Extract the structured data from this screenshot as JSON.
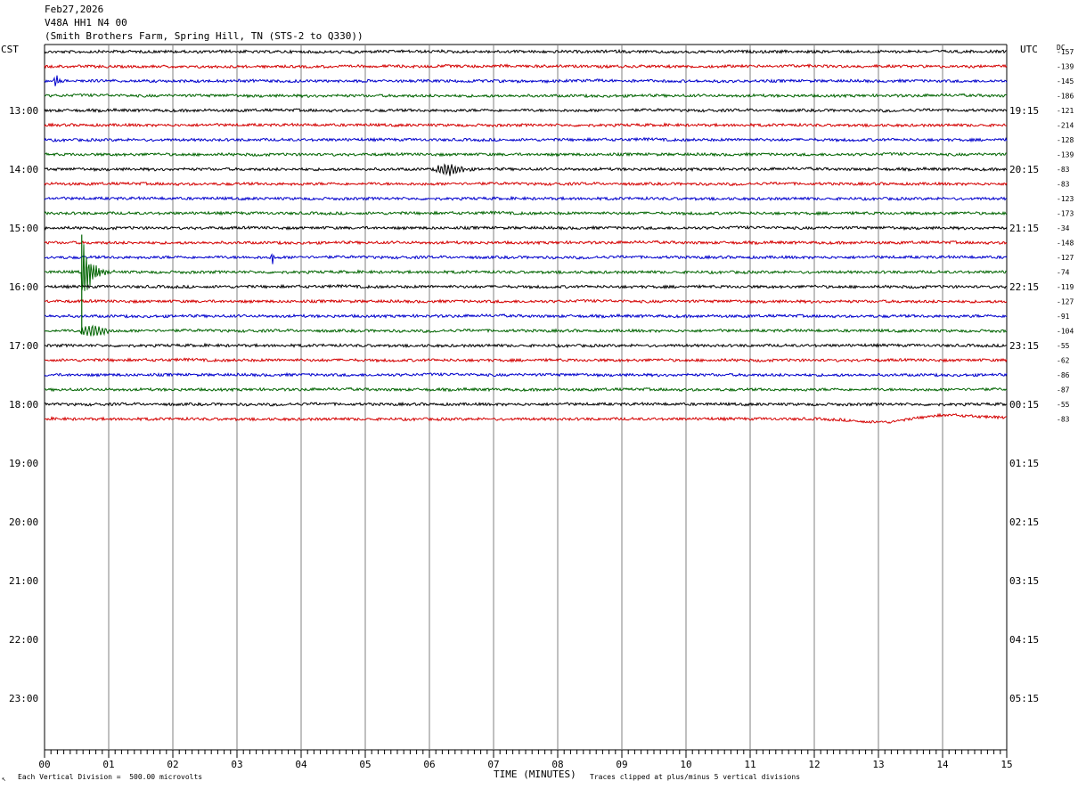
{
  "header": {
    "date": "Feb27,2026",
    "channel": "V48A HH1 N4 00",
    "station": "(Smith Brothers Farm, Spring Hill, TN (STS-2 to Q330))"
  },
  "left_zone_label": "CST",
  "right_zone_label": "UTC",
  "dc_header": "DC",
  "colors": {
    "black": "#000000",
    "red": "#d40000",
    "blue": "#0000cc",
    "green": "#006400",
    "grid": "#808080"
  },
  "footer": {
    "left_mark": "↖",
    "scale_note": "Each Vertical Division =  500.00 microvolts",
    "clip_note": "Traces clipped at plus/minus 5 vertical divisions"
  },
  "chart_data": {
    "type": "line",
    "title": "",
    "xlabel": "TIME (MINUTES)",
    "ylabel": "",
    "xlim": [
      0,
      15
    ],
    "x_ticks": [
      "00",
      "01",
      "02",
      "03",
      "04",
      "05",
      "06",
      "07",
      "08",
      "09",
      "10",
      "11",
      "12",
      "13",
      "14",
      "15"
    ],
    "rows_per_hour": 4,
    "trace_color_cycle": [
      "black",
      "red",
      "blue",
      "green"
    ],
    "hour_labels_cst": [
      "13:00",
      "14:00",
      "15:00",
      "16:00",
      "17:00",
      "18:00",
      "19:00",
      "20:00",
      "21:00",
      "22:00",
      "23:00"
    ],
    "hour_labels_utc": [
      "19:15",
      "20:15",
      "21:15",
      "22:15",
      "23:15",
      "00:15",
      "01:15",
      "02:15",
      "03:15",
      "04:15",
      "05:15"
    ],
    "first_hour_label_row": 4,
    "trace_dc_offsets": [
      -157,
      -139,
      -145,
      -186,
      -121,
      -214,
      -128,
      -139,
      -83,
      -83,
      -123,
      -173,
      -34,
      -148,
      -127,
      -74,
      -119,
      -127,
      -91,
      -104,
      -55,
      -62,
      -86,
      -87,
      -55,
      -83
    ],
    "total_rows": 48,
    "events": [
      {
        "row": 2,
        "minute": 0.18,
        "type": "local_spike"
      },
      {
        "row": 8,
        "minute": 6.15,
        "type": "wave_packet"
      },
      {
        "row": 14,
        "minute": 3.55,
        "type": "local_spike"
      },
      {
        "row": 15,
        "minute": 0.58,
        "type": "clipped_event"
      },
      {
        "row": 19,
        "minute": 0.6,
        "type": "wave_packet"
      },
      {
        "row": 25,
        "minute": 12.8,
        "type": "baseline_drift"
      }
    ]
  }
}
